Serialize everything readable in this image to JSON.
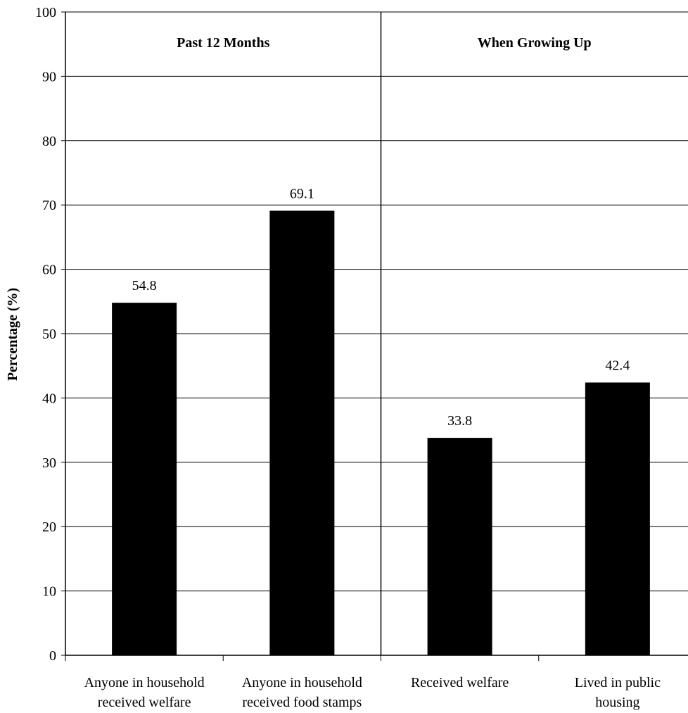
{
  "chart_data": {
    "type": "bar",
    "title": "",
    "xlabel": "",
    "ylabel": "Percentage (%)",
    "ylim": [
      0,
      100
    ],
    "yticks": [
      0,
      10,
      20,
      30,
      40,
      50,
      60,
      70,
      80,
      90,
      100
    ],
    "grid": true,
    "legend": "none",
    "bar_color": "#000000",
    "categories": [
      [
        "Anyone in household",
        "received welfare"
      ],
      [
        "Anyone in household",
        "received food stamps"
      ],
      [
        "Received welfare"
      ],
      [
        "Lived in public",
        "housing"
      ]
    ],
    "values": [
      54.8,
      69.1,
      33.8,
      42.4
    ],
    "value_labels": [
      "54.8",
      "69.1",
      "33.8",
      "42.4"
    ],
    "groups": [
      {
        "label": "Past 12 Months",
        "categories": [
          0,
          1
        ]
      },
      {
        "label": "When Growing Up",
        "categories": [
          2,
          3
        ]
      }
    ]
  }
}
